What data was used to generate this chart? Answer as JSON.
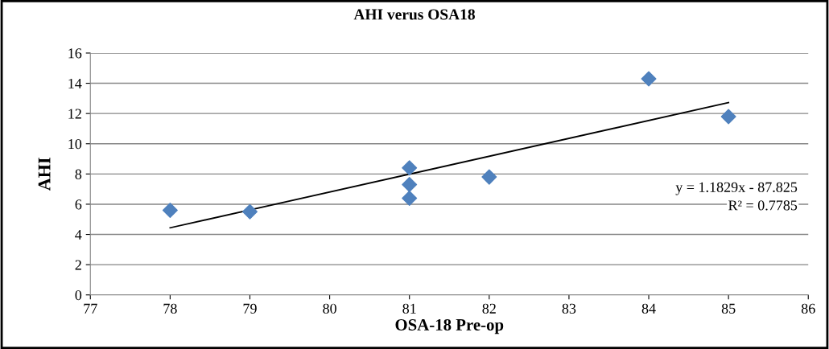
{
  "chart_data": {
    "type": "scatter",
    "title": "AHI verus OSA18",
    "xlabel": "OSA-18 Pre-op",
    "ylabel": "AHI",
    "series": [
      {
        "color": "#4f81bd",
        "marker": "diamond",
        "x": [
          78,
          79,
          81,
          81,
          81,
          82,
          84,
          85
        ],
        "values": [
          5.6,
          5.5,
          8.4,
          7.3,
          6.4,
          7.8,
          14.3,
          11.8
        ]
      },
      {
        "type": "line",
        "color": "#000000",
        "marker": "none",
        "line_style": "solid",
        "x": [
          78,
          85
        ],
        "values": [
          4.44,
          12.72
        ]
      }
    ],
    "annotations": [
      "y = 1.1829x - 87.825",
      "R² = 0.7785"
    ],
    "xlim": [
      77,
      86
    ],
    "xticks": [
      77,
      78,
      79,
      80,
      81,
      82,
      83,
      84,
      85,
      86
    ],
    "ylim": [
      0,
      16
    ],
    "yticks": [
      0,
      2,
      4,
      6,
      8,
      10,
      12,
      14,
      16
    ],
    "grid": "y",
    "legend": false
  }
}
